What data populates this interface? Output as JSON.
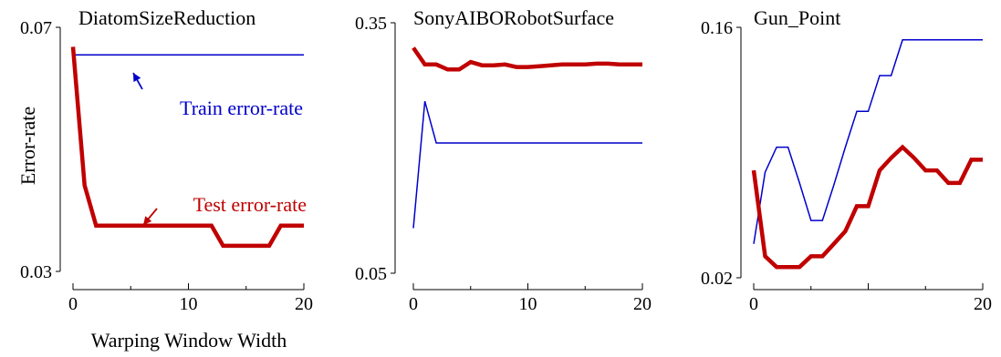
{
  "figure": {
    "xlabel": "Warping Window Width",
    "ylabel": "Error-rate",
    "annotations": {
      "train": "Train error-rate",
      "test": "Test error-rate"
    },
    "colors": {
      "train": "#0000cc",
      "test": "#c00000",
      "annotation_train": "#0000cc",
      "annotation_test": "#c00000",
      "axis": "#000000"
    }
  },
  "chart_data": [
    {
      "type": "line",
      "title": "DiatomSizeReduction",
      "xlim": [
        0,
        20
      ],
      "ylim": [
        0.03,
        0.07
      ],
      "xticks": [
        "0",
        "10",
        "20"
      ],
      "yticks": [
        "0.03",
        "0.07"
      ],
      "x": [
        0,
        1,
        2,
        3,
        4,
        5,
        6,
        7,
        8,
        9,
        10,
        11,
        12,
        13,
        14,
        15,
        16,
        17,
        18,
        19,
        20
      ],
      "series": [
        {
          "name": "Train error-rate",
          "values": [
            0.0655,
            0.0655,
            0.0655,
            0.0655,
            0.0655,
            0.0655,
            0.0655,
            0.0655,
            0.0655,
            0.0655,
            0.0655,
            0.0655,
            0.0655,
            0.0655,
            0.0655,
            0.0655,
            0.0655,
            0.0655,
            0.0655,
            0.0655,
            0.0655
          ]
        },
        {
          "name": "Test error-rate",
          "values": [
            0.0668,
            0.0441,
            0.0375,
            0.0375,
            0.0375,
            0.0375,
            0.0375,
            0.0375,
            0.0375,
            0.0375,
            0.0375,
            0.0375,
            0.0375,
            0.0342,
            0.0342,
            0.0342,
            0.0342,
            0.0342,
            0.0375,
            0.0375,
            0.0375
          ]
        }
      ]
    },
    {
      "type": "line",
      "title": "SonyAIBORobotSurface",
      "xlim": [
        0,
        20
      ],
      "ylim": [
        0.05,
        0.35
      ],
      "xticks": [
        "0",
        "10",
        "20"
      ],
      "yticks": [
        "0.05",
        "0.35"
      ],
      "x": [
        0,
        1,
        2,
        3,
        4,
        5,
        6,
        7,
        8,
        9,
        10,
        11,
        12,
        13,
        14,
        15,
        16,
        17,
        18,
        19,
        20
      ],
      "series": [
        {
          "name": "Train error-rate",
          "values": [
            0.104,
            0.256,
            0.206,
            0.206,
            0.206,
            0.206,
            0.206,
            0.206,
            0.206,
            0.206,
            0.206,
            0.206,
            0.206,
            0.206,
            0.206,
            0.206,
            0.206,
            0.206,
            0.206,
            0.206,
            0.206
          ]
        },
        {
          "name": "Test error-rate",
          "values": [
            0.32,
            0.3,
            0.3,
            0.294,
            0.294,
            0.303,
            0.299,
            0.299,
            0.3,
            0.297,
            0.297,
            0.298,
            0.299,
            0.3,
            0.3,
            0.3,
            0.301,
            0.301,
            0.3,
            0.3,
            0.3
          ]
        }
      ]
    },
    {
      "type": "line",
      "title": "Gun_Point",
      "xlim": [
        0,
        20
      ],
      "ylim": [
        0.02,
        0.16
      ],
      "xticks": [
        "0",
        "20"
      ],
      "yticks": [
        "0.02",
        "0.16"
      ],
      "x": [
        0,
        1,
        2,
        3,
        4,
        5,
        6,
        7,
        8,
        9,
        10,
        11,
        12,
        13,
        14,
        15,
        16,
        17,
        18,
        19,
        20
      ],
      "series": [
        {
          "name": "Train error-rate",
          "values": [
            0.039,
            0.079,
            0.093,
            0.093,
            0.073,
            0.052,
            0.052,
            0.072,
            0.093,
            0.113,
            0.113,
            0.133,
            0.133,
            0.153,
            0.153,
            0.153,
            0.153,
            0.153,
            0.153,
            0.153,
            0.153
          ]
        },
        {
          "name": "Test error-rate",
          "values": [
            0.08,
            0.032,
            0.026,
            0.026,
            0.026,
            0.032,
            0.032,
            0.039,
            0.046,
            0.06,
            0.06,
            0.08,
            0.087,
            0.093,
            0.087,
            0.08,
            0.08,
            0.073,
            0.073,
            0.086,
            0.086
          ]
        }
      ]
    }
  ]
}
